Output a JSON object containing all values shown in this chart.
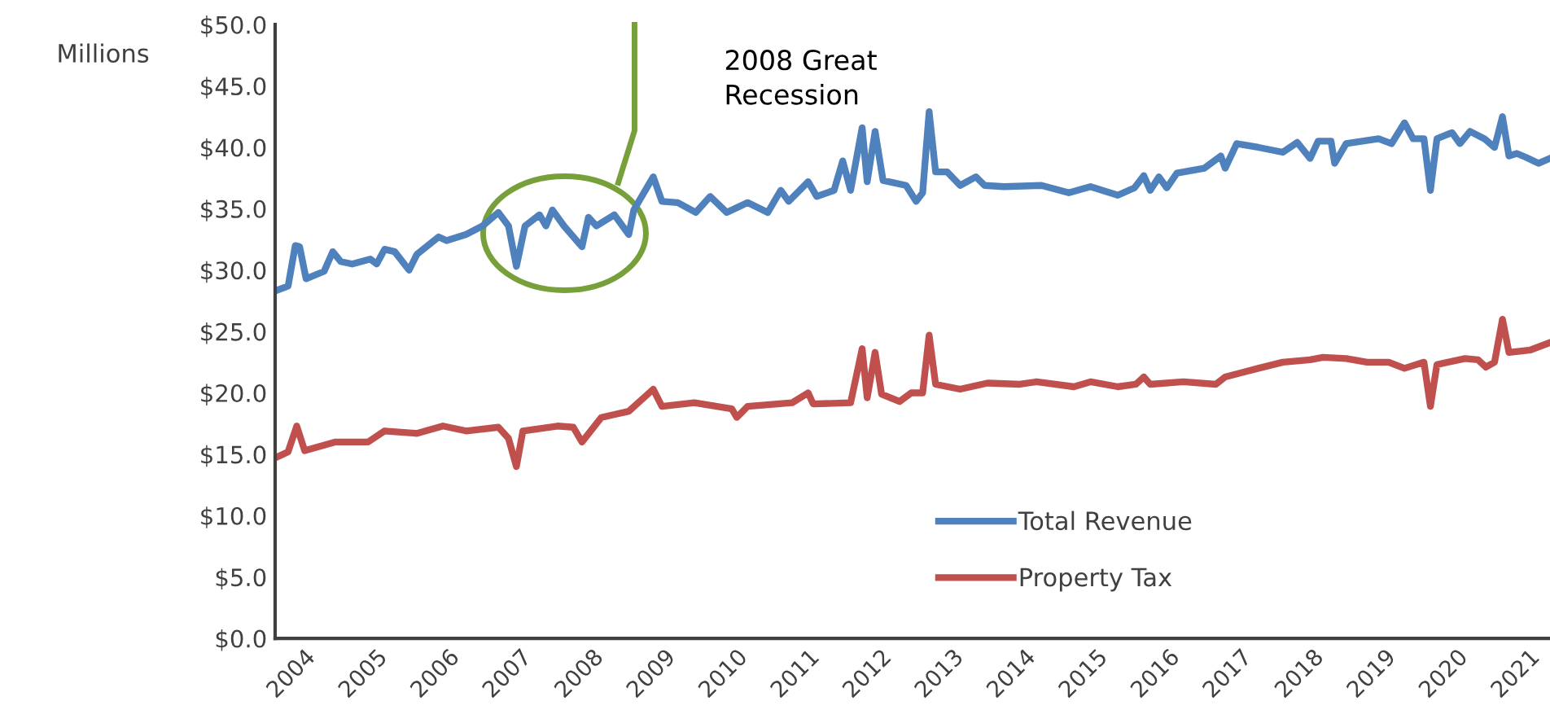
{
  "chart_data": {
    "type": "line",
    "ylabel": "Millions",
    "xlim": [
      2003.77,
      2021.47
    ],
    "xticks": [
      2004,
      2005,
      2006,
      2007,
      2008,
      2009,
      2010,
      2011,
      2012,
      2013,
      2014,
      2015,
      2016,
      2017,
      2018,
      2019,
      2020,
      2021
    ],
    "ylim": [
      0,
      50
    ],
    "yticks": [
      {
        "value": 0,
        "label": "$0.0"
      },
      {
        "value": 5,
        "label": "$5.0"
      },
      {
        "value": 10,
        "label": "$10.0"
      },
      {
        "value": 15,
        "label": "$15.0"
      },
      {
        "value": 20,
        "label": "$20.0"
      },
      {
        "value": 25,
        "label": "$25.0"
      },
      {
        "value": 30,
        "label": "$30.0"
      },
      {
        "value": 35,
        "label": "$35.0"
      },
      {
        "value": 40,
        "label": "$40.0"
      },
      {
        "value": 45,
        "label": "$45.0"
      },
      {
        "value": 50,
        "label": "$50.0"
      }
    ],
    "grid": false,
    "legend": "bottom",
    "marker": "none",
    "line_style": "solid",
    "annotations": [
      "2008 Great\nRecession"
    ],
    "series": [
      {
        "name": "Total Revenue",
        "color": "#4f81bd",
        "x": [
          2003.77,
          2003.95,
          2004.05,
          2004.11,
          2004.2,
          2004.45,
          2004.57,
          2004.68,
          2004.84,
          2005.09,
          2005.18,
          2005.29,
          2005.43,
          2005.63,
          2005.74,
          2006.04,
          2006.15,
          2006.42,
          2006.65,
          2006.87,
          2007.01,
          2007.12,
          2007.24,
          2007.44,
          2007.53,
          2007.62,
          2007.78,
          2008.03,
          2008.12,
          2008.23,
          2008.48,
          2008.68,
          2008.75,
          2009.02,
          2009.14,
          2009.36,
          2009.61,
          2009.81,
          2010.04,
          2010.33,
          2010.61,
          2010.79,
          2010.9,
          2011.17,
          2011.29,
          2011.53,
          2011.65,
          2011.76,
          2011.92,
          2011.99,
          2012.1,
          2012.21,
          2012.53,
          2012.67,
          2012.76,
          2012.85,
          2012.94,
          2013.1,
          2013.28,
          2013.5,
          2013.62,
          2013.89,
          2014.41,
          2014.79,
          2015.09,
          2015.47,
          2015.7,
          2015.83,
          2015.92,
          2016.04,
          2016.15,
          2016.29,
          2016.67,
          2016.9,
          2016.96,
          2017.12,
          2017.42,
          2017.76,
          2017.96,
          2018.14,
          2018.25,
          2018.43,
          2018.48,
          2018.64,
          2019.09,
          2019.27,
          2019.45,
          2019.57,
          2019.72,
          2019.81,
          2019.9,
          2020.11,
          2020.22,
          2020.36,
          2020.56,
          2020.7,
          2020.81,
          2020.9,
          2021.01,
          2021.13,
          2021.31,
          2021.47
        ],
        "values": [
          28.3,
          28.7,
          32.0,
          31.9,
          29.3,
          29.9,
          31.5,
          30.7,
          30.5,
          30.9,
          30.5,
          31.7,
          31.5,
          30.0,
          31.3,
          32.7,
          32.4,
          32.9,
          33.6,
          34.7,
          33.6,
          30.3,
          33.6,
          34.5,
          33.6,
          34.9,
          33.6,
          31.9,
          34.3,
          33.6,
          34.5,
          32.9,
          34.9,
          37.6,
          35.6,
          35.5,
          34.7,
          36.0,
          34.7,
          35.5,
          34.7,
          36.5,
          35.6,
          37.2,
          36.0,
          36.5,
          38.9,
          36.5,
          41.6,
          37.2,
          41.3,
          37.3,
          36.9,
          35.6,
          36.3,
          42.9,
          38.0,
          38.0,
          36.9,
          37.6,
          36.9,
          36.8,
          36.9,
          36.3,
          36.8,
          36.1,
          36.7,
          37.7,
          36.5,
          37.6,
          36.7,
          37.9,
          38.3,
          39.3,
          38.3,
          40.3,
          40.0,
          39.6,
          40.4,
          39.1,
          40.5,
          40.5,
          38.7,
          40.3,
          40.7,
          40.3,
          42.0,
          40.7,
          40.7,
          36.5,
          40.7,
          41.2,
          40.3,
          41.3,
          40.7,
          40.0,
          42.5,
          39.3,
          39.5,
          39.2,
          38.7,
          39.1
        ]
      },
      {
        "name": "Property Tax",
        "color": "#c0504d",
        "x": [
          2003.77,
          2003.95,
          2004.07,
          2004.18,
          2004.61,
          2005.06,
          2005.29,
          2005.74,
          2006.1,
          2006.42,
          2006.87,
          2007.01,
          2007.12,
          2007.21,
          2007.69,
          2007.91,
          2008.03,
          2008.3,
          2008.68,
          2009.02,
          2009.14,
          2009.59,
          2010.11,
          2010.18,
          2010.33,
          2010.95,
          2011.17,
          2011.24,
          2011.76,
          2011.92,
          2011.99,
          2012.1,
          2012.19,
          2012.44,
          2012.6,
          2012.76,
          2012.85,
          2012.94,
          2013.28,
          2013.66,
          2014.11,
          2014.34,
          2014.86,
          2015.09,
          2015.47,
          2015.72,
          2015.83,
          2015.92,
          2016.38,
          2016.83,
          2016.96,
          2017.42,
          2017.76,
          2018.14,
          2018.32,
          2018.64,
          2018.93,
          2019.23,
          2019.45,
          2019.72,
          2019.81,
          2019.9,
          2020.29,
          2020.47,
          2020.58,
          2020.7,
          2020.81,
          2020.9,
          2021.2,
          2021.47
        ],
        "values": [
          14.7,
          15.2,
          17.3,
          15.3,
          16.0,
          16.0,
          16.9,
          16.7,
          17.3,
          16.9,
          17.2,
          16.3,
          14.0,
          16.9,
          17.3,
          17.2,
          16.0,
          18.0,
          18.5,
          20.3,
          18.9,
          19.2,
          18.7,
          18.0,
          18.9,
          19.2,
          20.0,
          19.1,
          19.2,
          23.6,
          19.6,
          23.3,
          19.9,
          19.3,
          20.0,
          20.0,
          24.7,
          20.7,
          20.3,
          20.8,
          20.7,
          20.9,
          20.5,
          20.9,
          20.5,
          20.7,
          21.3,
          20.7,
          20.9,
          20.7,
          21.3,
          22.0,
          22.5,
          22.7,
          22.9,
          22.8,
          22.5,
          22.5,
          22.0,
          22.5,
          18.9,
          22.3,
          22.8,
          22.7,
          22.1,
          22.5,
          26.0,
          23.3,
          23.5,
          24.1
        ]
      }
    ]
  }
}
